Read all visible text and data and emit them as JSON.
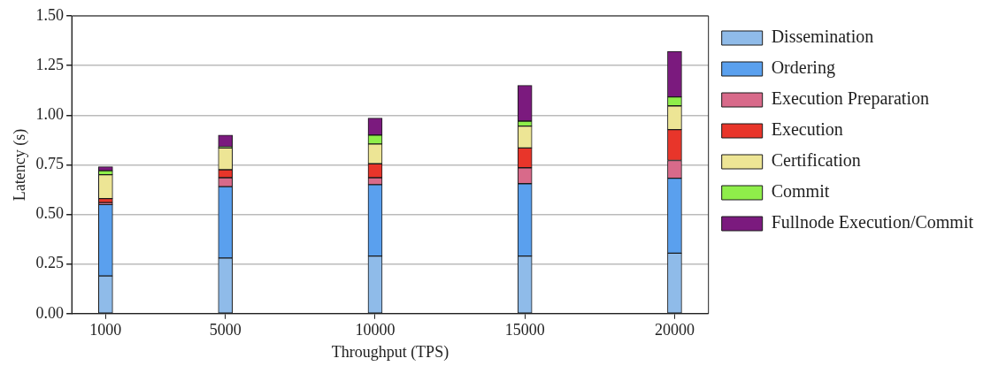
{
  "chart_data": {
    "type": "bar",
    "stacked": true,
    "xlabel": "Throughput (TPS)",
    "ylabel": "Latency (s)",
    "x": [
      1000,
      5000,
      10000,
      15000,
      20000
    ],
    "series": [
      {
        "name": "Dissemination",
        "color": "#8fbbe9",
        "values": [
          0.19,
          0.28,
          0.29,
          0.29,
          0.305
        ]
      },
      {
        "name": "Ordering",
        "color": "#5aa0ee",
        "values": [
          0.36,
          0.36,
          0.36,
          0.365,
          0.377
        ]
      },
      {
        "name": "Execution Preparation",
        "color": "#d86a8a",
        "values": [
          0.01,
          0.045,
          0.035,
          0.08,
          0.09
        ]
      },
      {
        "name": "Execution",
        "color": "#e8352a",
        "values": [
          0.02,
          0.04,
          0.07,
          0.1,
          0.155
        ]
      },
      {
        "name": "Certification",
        "color": "#ede595",
        "values": [
          0.12,
          0.11,
          0.1,
          0.11,
          0.12
        ]
      },
      {
        "name": "Commit",
        "color": "#8fee4a",
        "values": [
          0.02,
          0.005,
          0.045,
          0.025,
          0.045
        ]
      },
      {
        "name": "Fullnode Execution/Commit",
        "color": "#7b1a7e",
        "values": [
          0.02,
          0.06,
          0.085,
          0.18,
          0.23
        ]
      }
    ],
    "xlim": [
      -130,
      21130
    ],
    "xticks": [
      1000,
      5000,
      10000,
      15000,
      20000
    ],
    "ylim": [
      0,
      1.5
    ],
    "yticks": [
      {
        "value": 0,
        "label": "0.00"
      },
      {
        "value": 0.25,
        "label": "0.25"
      },
      {
        "value": 0.5,
        "label": "0.50"
      },
      {
        "value": 0.75,
        "label": "0.75"
      },
      {
        "value": 1,
        "label": "1.00"
      },
      {
        "value": 1.25,
        "label": "1.25"
      },
      {
        "value": 1.5,
        "label": "1.50"
      }
    ],
    "grid": "y",
    "legend": "right"
  }
}
